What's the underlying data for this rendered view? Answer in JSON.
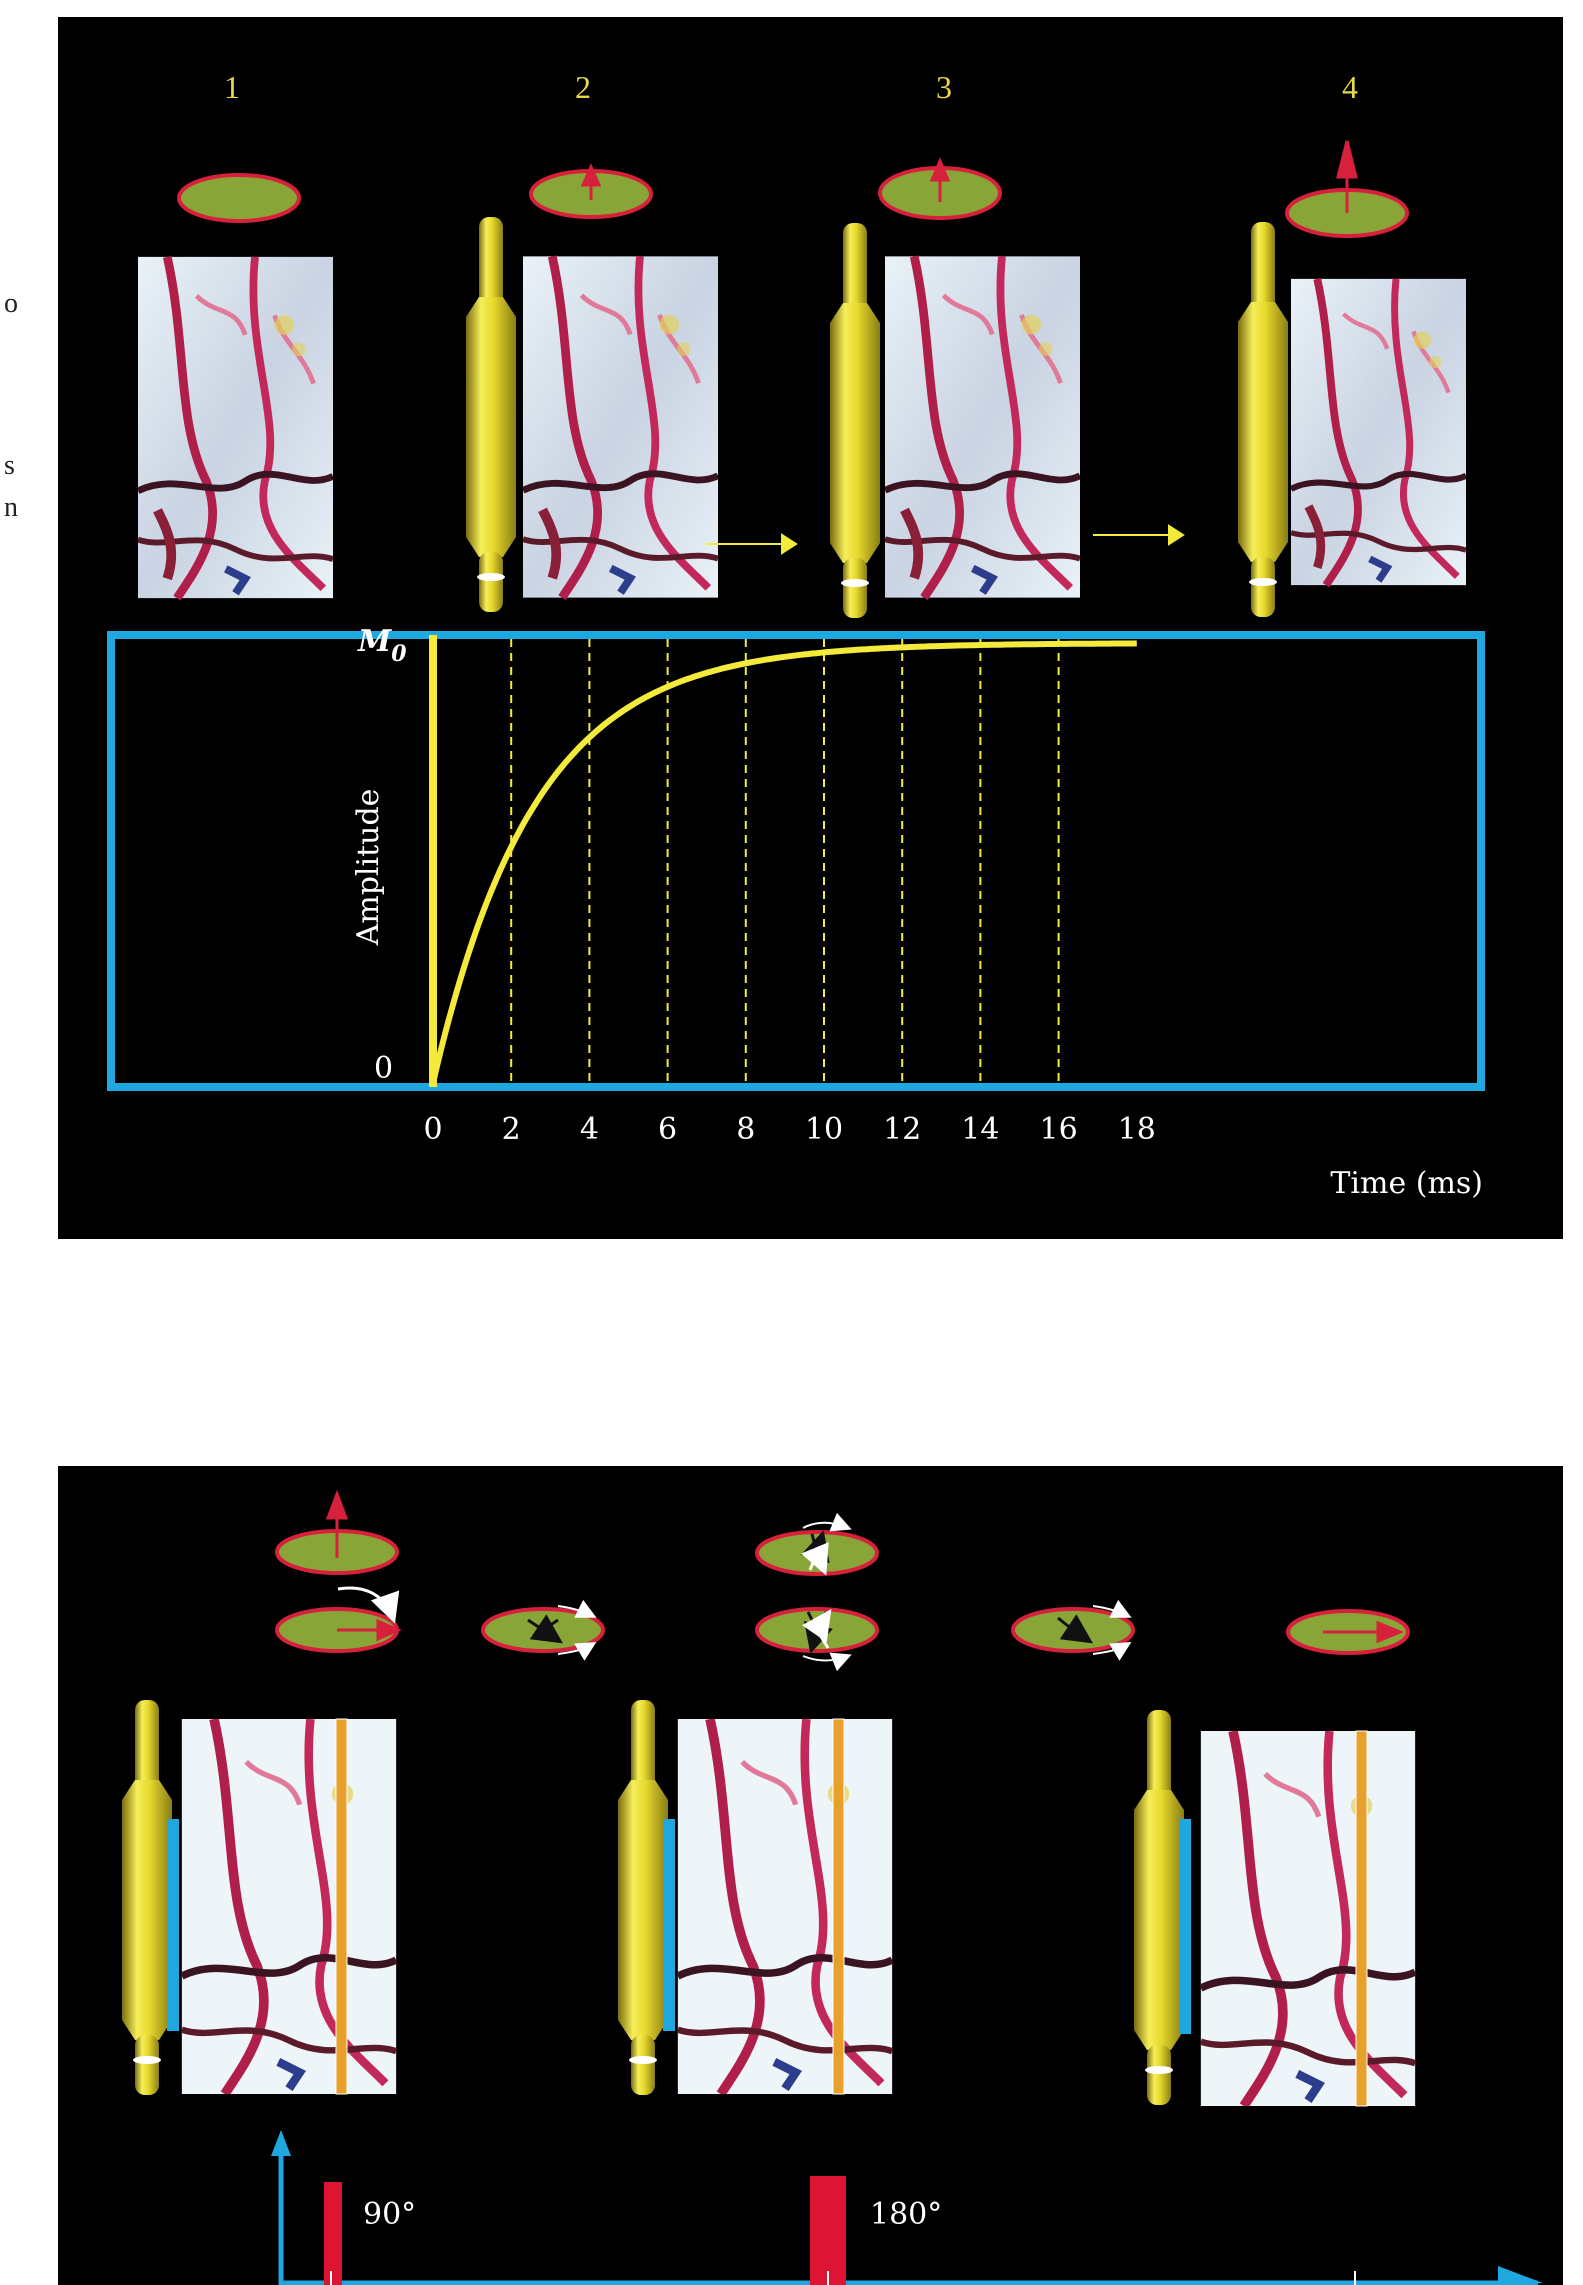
{
  "stage_numbers": [
    "1",
    "2",
    "3",
    "4"
  ],
  "graph": {
    "ylabel": "Amplitude",
    "xlabel": "Time (ms)",
    "top_label": "M",
    "top_label_sub": "0",
    "y_zero_label": "0",
    "x_ticks": [
      "0",
      "2",
      "4",
      "6",
      "8",
      "10",
      "12",
      "14",
      "16",
      "18"
    ]
  },
  "pulse_labels": [
    "90°",
    "180°"
  ],
  "edge_fragments": [
    "o",
    "s",
    "n"
  ],
  "colors": {
    "panel": "#000000",
    "yellow": "#f3ea3b",
    "blue_frame": "#1fa8e0",
    "ellipse_fill": "#8aa537",
    "ellipse_edge": "#d6203c",
    "pulse_red": "#dd1433",
    "orange_bar": "#e8a02c",
    "axis_blue": "#1fa8e0"
  }
}
